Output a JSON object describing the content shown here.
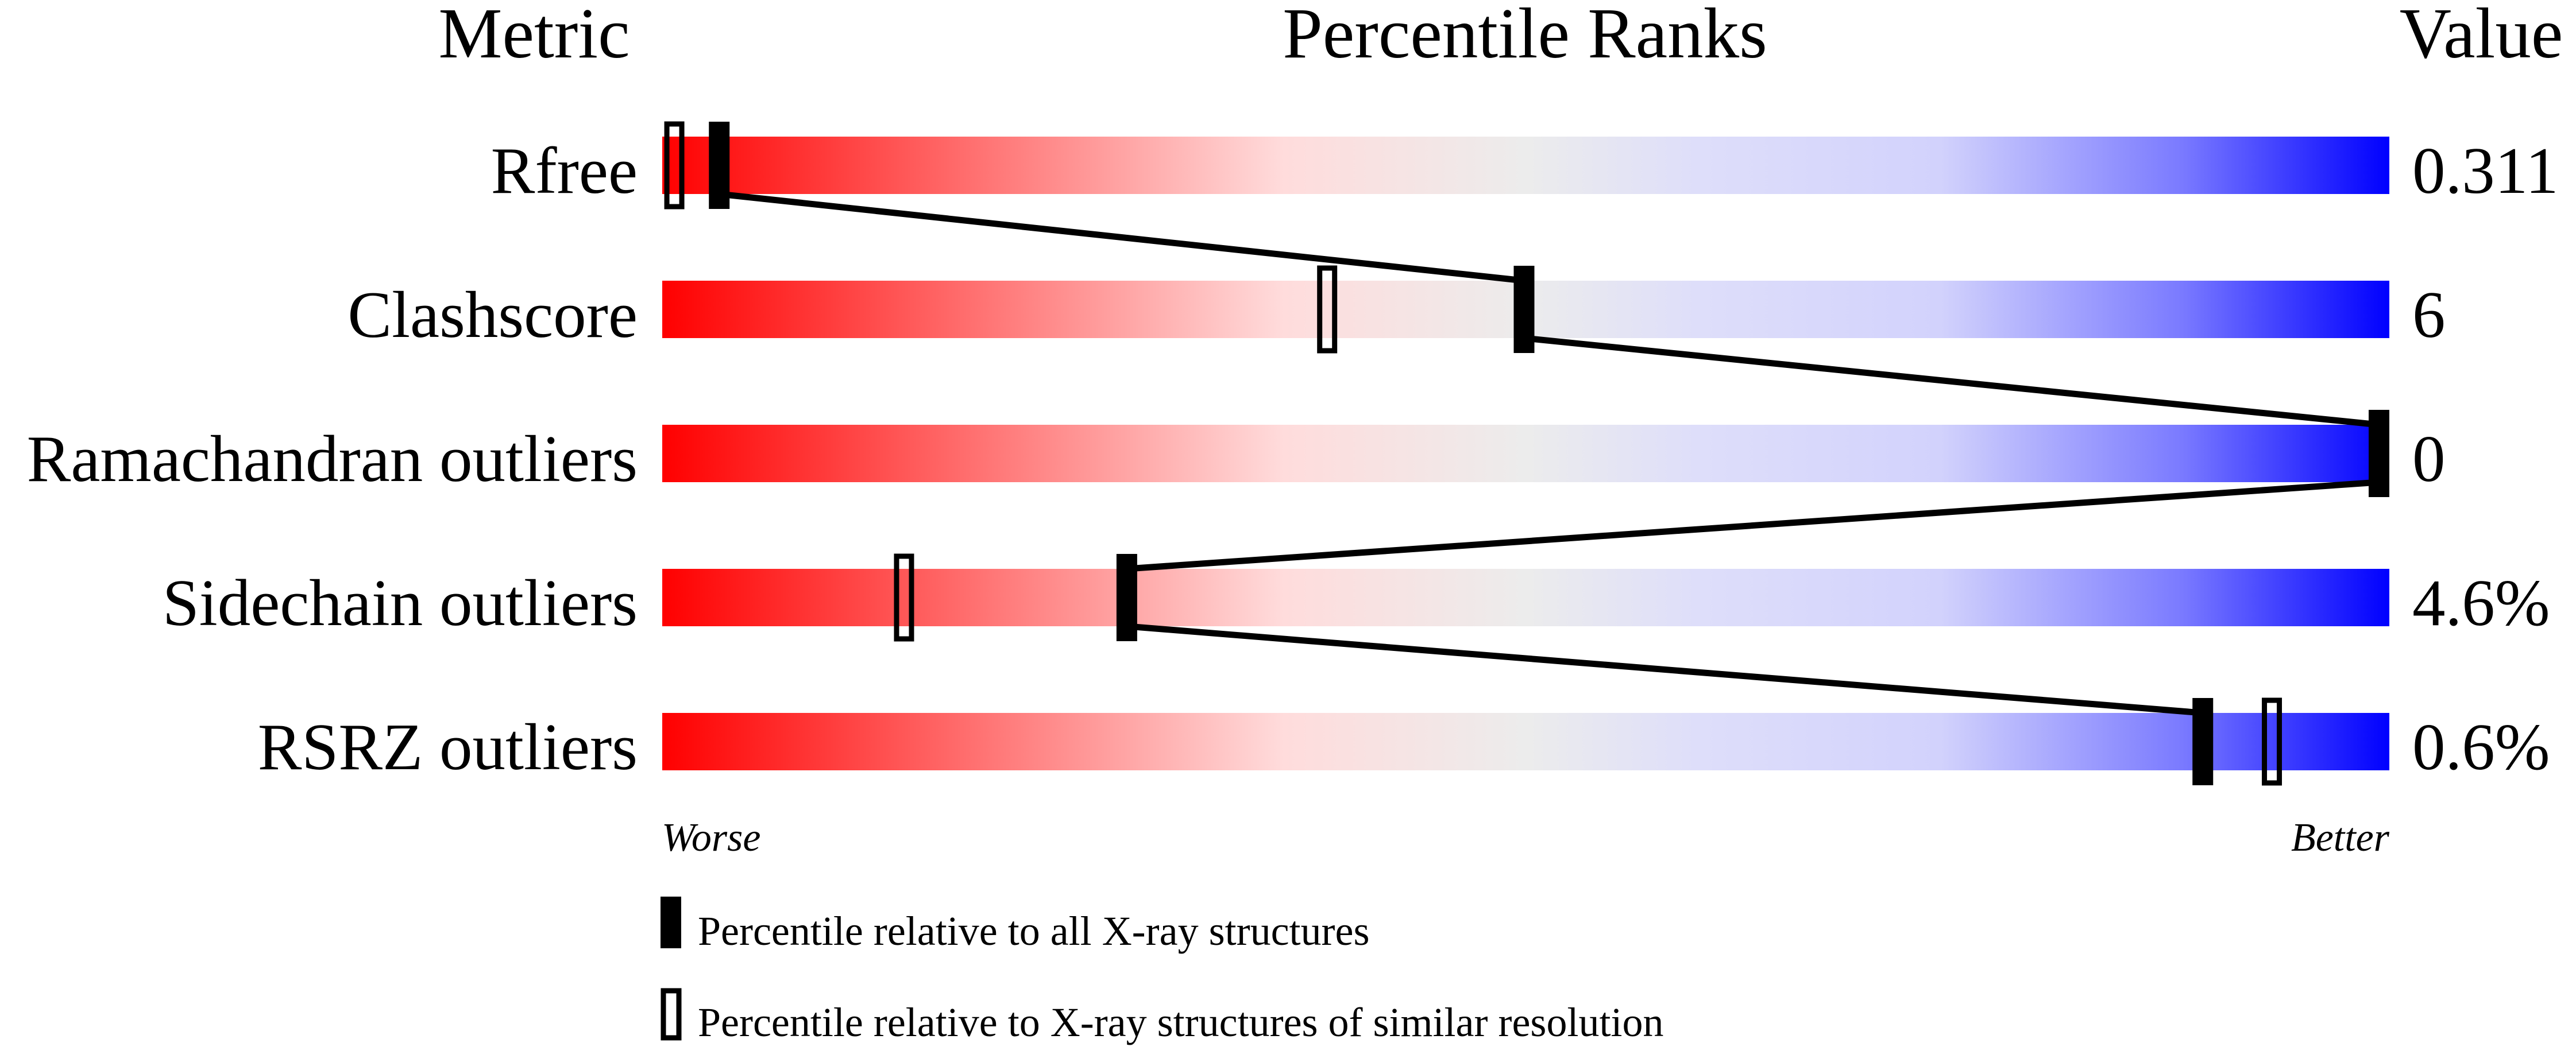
{
  "chart_data": {
    "type": "percentile-slider",
    "headers": {
      "metric": "Metric",
      "ranks": "Percentile Ranks",
      "value": "Value"
    },
    "xlim": [
      0,
      100
    ],
    "axis_labels": {
      "left": "Worse",
      "right": "Better"
    },
    "colors": {
      "worse": "#ff0000",
      "middle": "#eeeeee",
      "better": "#0000ff",
      "marker": "#000000"
    },
    "rows": [
      {
        "metric": "Rfree",
        "value": "0.311",
        "percentile_all": 3.3,
        "percentile_similar": 0.7
      },
      {
        "metric": "Clashscore",
        "value": "6",
        "percentile_all": 49.9,
        "percentile_similar": 38.5
      },
      {
        "metric": "Ramachandran outliers",
        "value": "0",
        "percentile_all": 100,
        "percentile_similar": null
      },
      {
        "metric": "Sidechain outliers",
        "value": "4.6%",
        "percentile_all": 26.9,
        "percentile_similar": 14.0
      },
      {
        "metric": "RSRZ outliers",
        "value": "0.6%",
        "percentile_all": 89.2,
        "percentile_similar": 93.2
      }
    ],
    "legend": [
      {
        "marker": "filled",
        "label": "Percentile relative to all X-ray structures"
      },
      {
        "marker": "open",
        "label": "Percentile relative to X-ray structures of similar resolution"
      }
    ]
  }
}
